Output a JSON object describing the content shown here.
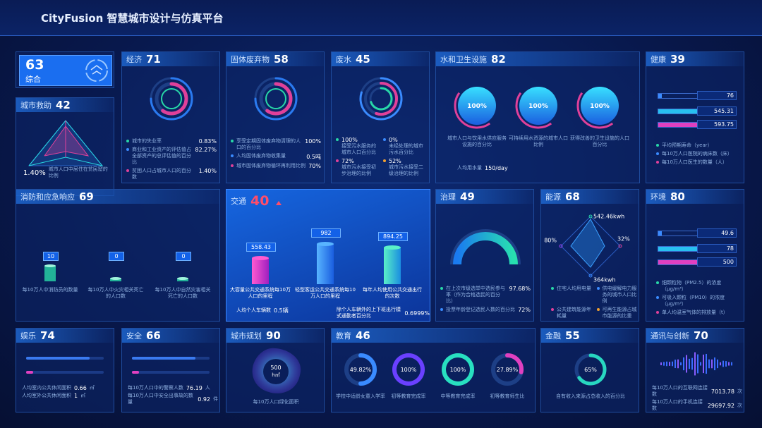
{
  "header": {
    "title": "CityFusion 智慧城市设计与仿真平台"
  },
  "panels": [
    {
      "score": 63,
      "label": "综合"
    },
    {
      "title": "城市救助",
      "score": 42,
      "value": "1.40%",
      "label": "城市人口中居住在贫民窟的比例"
    },
    {
      "title": "经济",
      "score": 71,
      "metrics": [
        {
          "label": "城市的失业率",
          "value": "0.83%"
        },
        {
          "label": "商业和工业资产的评估值占全部资产的总评估值的百分比",
          "value": "82.27%"
        },
        {
          "label": "贫困人口占城市人口的百分数",
          "value": "1.40%"
        }
      ]
    },
    {
      "title": "固体废弃物",
      "score": 58,
      "metrics": [
        {
          "label": "享受定期固体废弃物清理的人口的百分比",
          "value": "100%"
        },
        {
          "label": "人均固体废弃物收集量",
          "value": "0.5吨"
        },
        {
          "label": "城市固体废弃物循环再利用比例",
          "value": "70%"
        }
      ]
    },
    {
      "title": "废水",
      "score": 45,
      "metrics": [
        {
          "value": "100%",
          "label": "接受污水服务的城市人口百分比"
        },
        {
          "value": "0%",
          "label": "未经处理的城市污水百分比"
        },
        {
          "value": "72%",
          "label": "城市污水接受初步治理的比例"
        },
        {
          "value": "52%",
          "label": "城市污水接受二级治理的比例"
        }
      ]
    },
    {
      "title": "水和卫生设施",
      "score": 82,
      "metrics": [
        {
          "value": "100%",
          "label": "城市人口与饮用水供应服务设施的百分比"
        },
        {
          "value": "100%",
          "label": "可持续用水资源的城市人口比例"
        },
        {
          "value": "100%",
          "label": "获得改善的卫生设施的人口百分比"
        }
      ],
      "extra": {
        "label": "人均用水量",
        "value": "150/day"
      }
    },
    {
      "title": "健康",
      "score": 39,
      "values": [
        76,
        545.31,
        593.75
      ],
      "legend": [
        "平均预期寿命（year）",
        "每10万人口医院的病床数（床）",
        "每10万人口医生的数量（人）"
      ]
    },
    {
      "title": "消防和应急响应",
      "score": 69,
      "metrics": [
        {
          "value": 10,
          "label": "每10万人中消防员的数量"
        },
        {
          "value": 0,
          "label": "每10万人中火灾相关死亡的人口数"
        },
        {
          "value": 0,
          "label": "每10万人中自然灾害相关死亡的人口数"
        }
      ]
    },
    {
      "title": "交通",
      "score": 40,
      "metrics": [
        {
          "value": 558.43,
          "label": "大容量公共交通系统每10万人口的里程"
        },
        {
          "value": 982,
          "label": "轻型客运公共交通系统每10万人口的里程"
        },
        {
          "value": 894.25,
          "label": "每年人均使用公共交通出行的次数"
        }
      ],
      "footer": [
        {
          "label": "人均个人车辆数",
          "value": "0.5辆"
        },
        {
          "label": "除个人车辆外的上下班出行模式通勤者百分比",
          "value": "0.6999%"
        }
      ]
    },
    {
      "title": "治理",
      "score": 49,
      "metrics": [
        {
          "label": "在上次市级选举中选民参与率（作为合格选民的百分比）",
          "value": "97.68%"
        },
        {
          "label": "投票年龄登记选民人数的百分比",
          "value": "72%"
        }
      ]
    },
    {
      "title": "能源",
      "score": 68,
      "radar": [
        "542.46kwh",
        "32%",
        "364kwh",
        "80%"
      ],
      "legend": [
        "住宅人均用电量",
        "供电缓解电力服务的城市人口比例",
        "公共建筑能源年耗量",
        "可再生能源占城市能源的比重"
      ]
    },
    {
      "title": "环境",
      "score": 80,
      "values": [
        49.6,
        78,
        500
      ],
      "legend": [
        "细颗粒物（PM2.5）的浓度（μg/m³）",
        "可吸入颗粒（PM10）的浓度（μg/m³）",
        "单人均温室气体的排放量（t）"
      ]
    },
    {
      "title": "娱乐",
      "score": 74,
      "metrics": [
        {
          "label": "人均室内公共休闲面积",
          "value": 0.66,
          "unit": "㎡"
        },
        {
          "label": "人均室外公共休闲面积",
          "value": 1,
          "unit": "㎡"
        }
      ]
    },
    {
      "title": "安全",
      "score": 66,
      "metrics": [
        {
          "label": "每10万人口中的警察人数",
          "value": 76.19,
          "unit": "人"
        },
        {
          "label": "每10万人口中安全出事故的数量",
          "value": 0.92,
          "unit": "件"
        }
      ]
    },
    {
      "title": "城市规划",
      "score": 90,
      "value": 500,
      "unit": "h㎡",
      "label": "每10万人口绿化面积"
    },
    {
      "title": "教育",
      "score": 46,
      "metrics": [
        {
          "value": "49.82%",
          "label": "学校中适龄女童入学率"
        },
        {
          "value": "100%",
          "label": "初等教育完成率"
        },
        {
          "value": "100%",
          "label": "中等教育完成率"
        },
        {
          "value": "27.89%",
          "label": "初等教育师生比"
        }
      ]
    },
    {
      "title": "金融",
      "score": 55,
      "value": "65%",
      "label": "自有收入来源占总收入的百分比"
    },
    {
      "title": "通讯与创新",
      "score": 70,
      "metrics": [
        {
          "label": "每10万人口的互联网连接数",
          "value": 7013.78,
          "unit": "次"
        },
        {
          "label": "每10万人口的手机连接数",
          "value": 29697.92,
          "unit": "次"
        }
      ]
    }
  ]
}
